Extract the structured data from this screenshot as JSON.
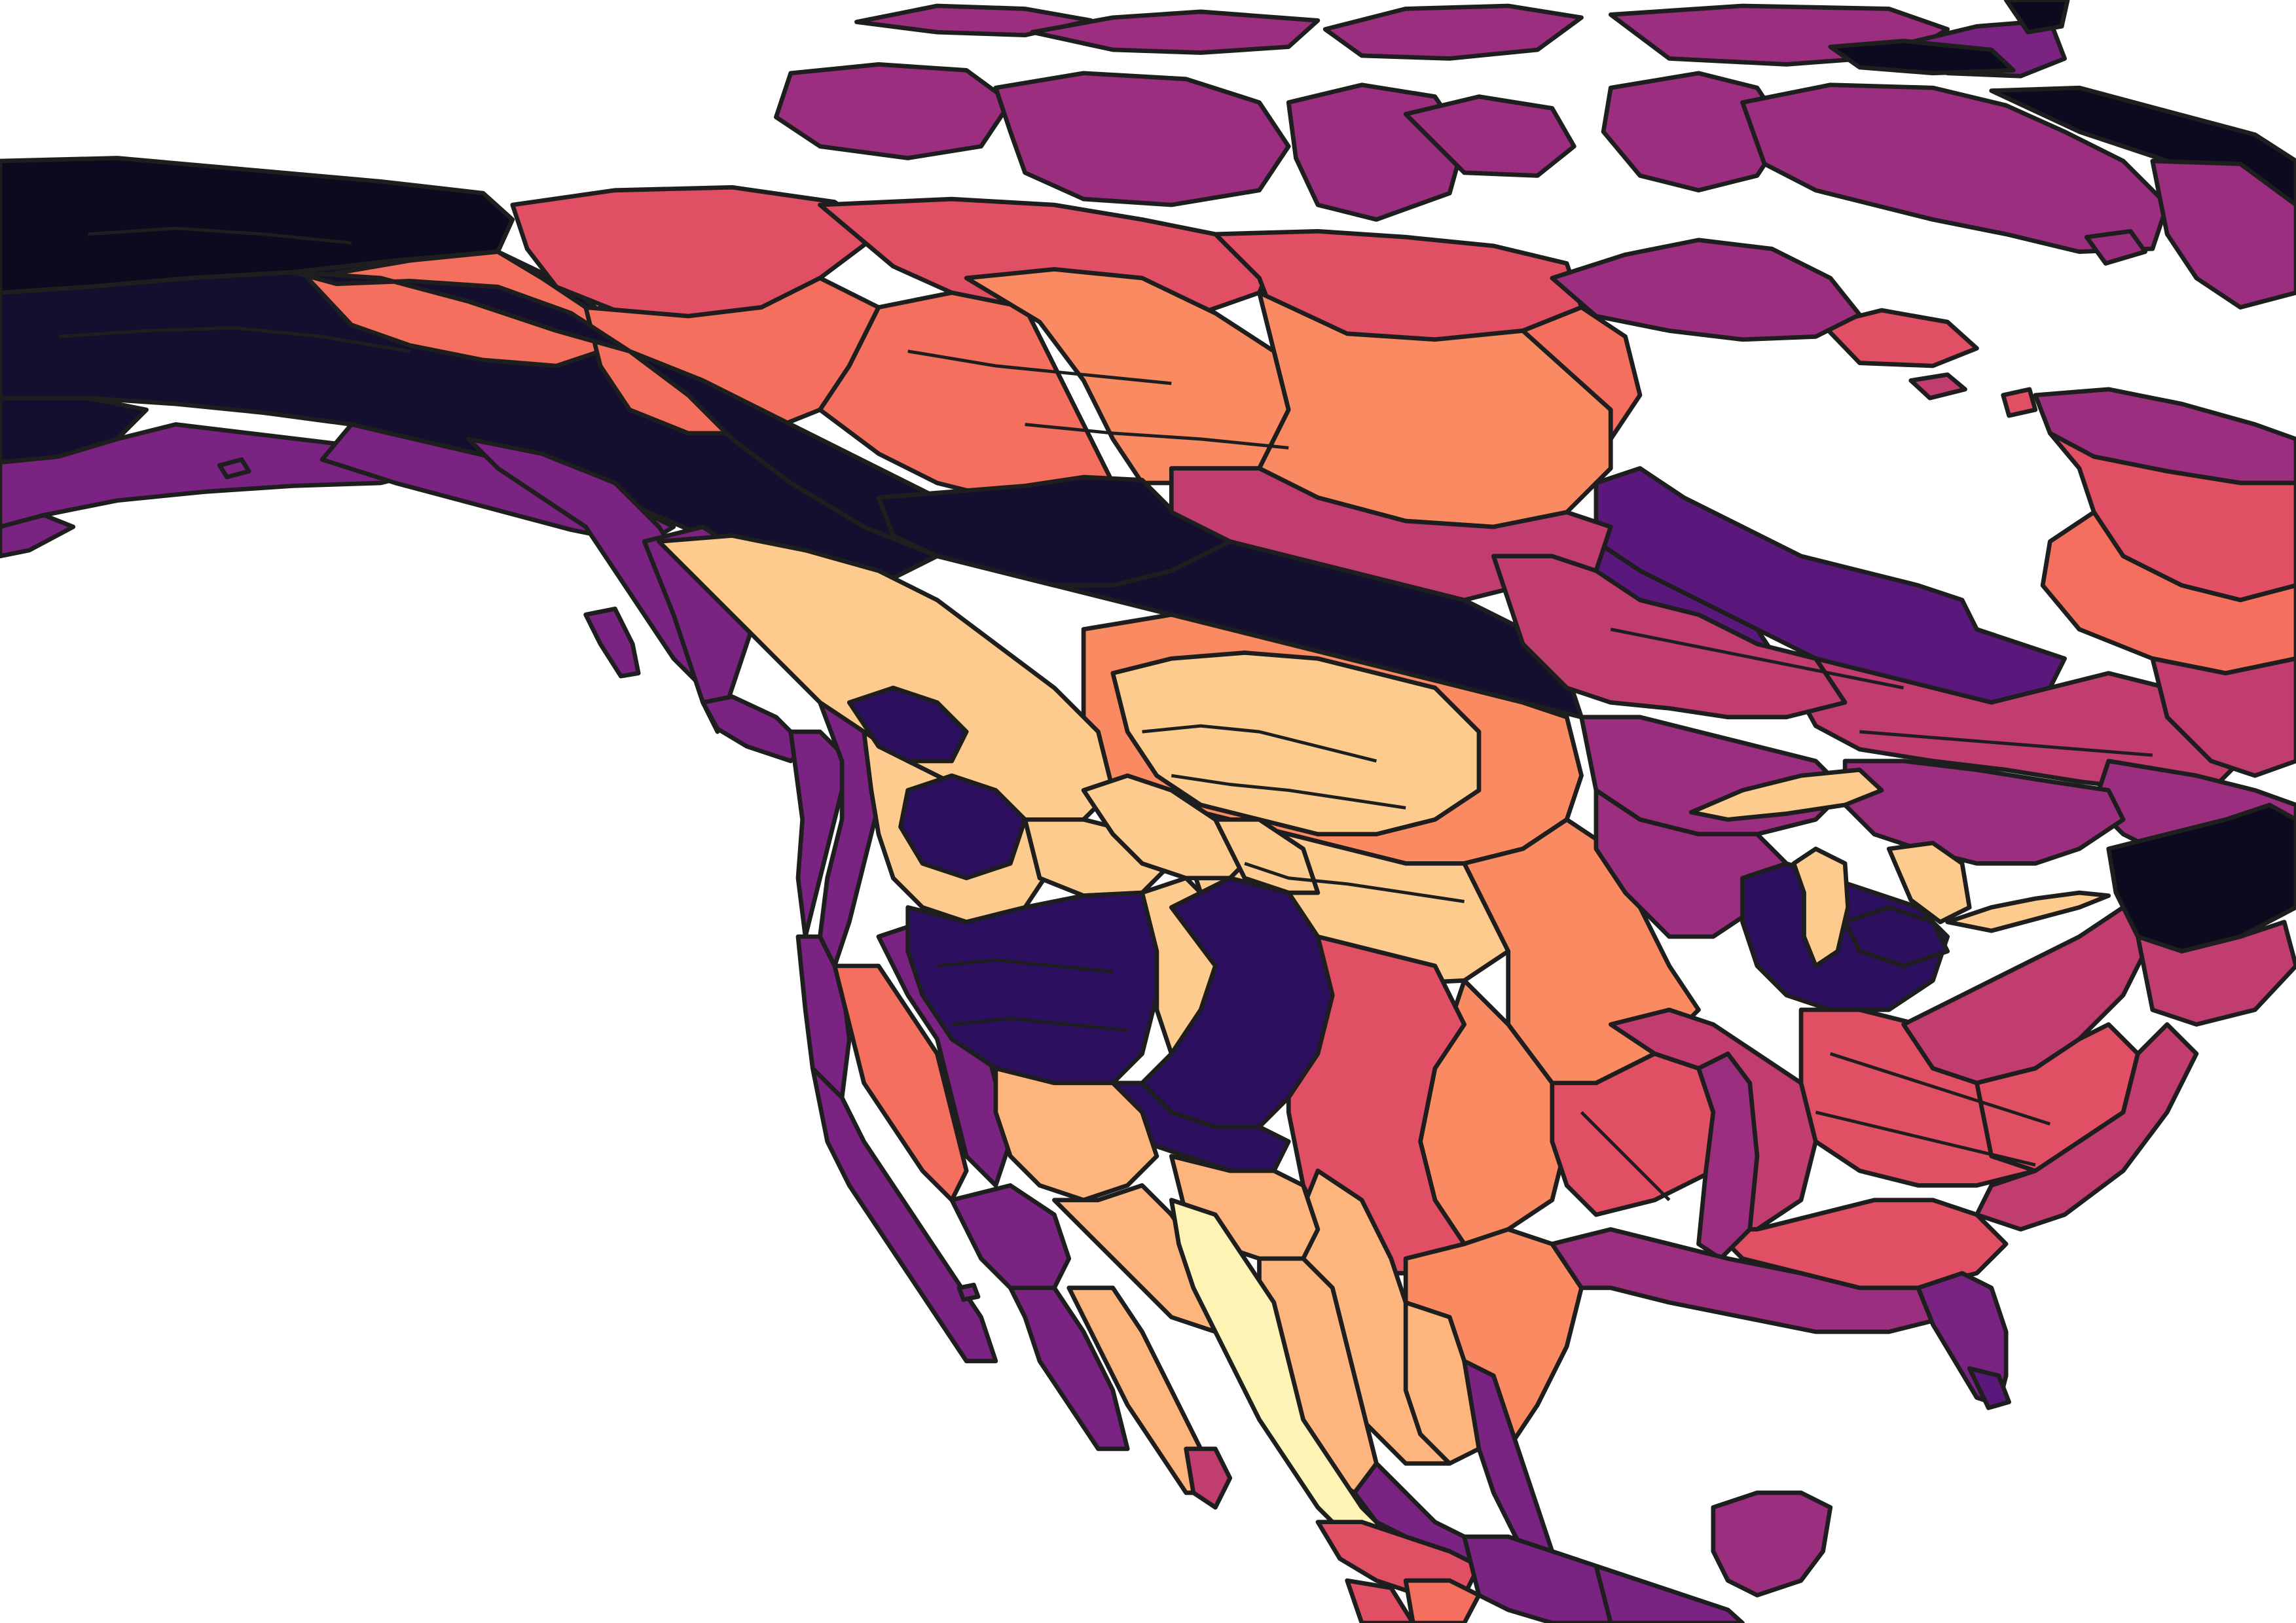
{
  "map": {
    "colormap": "magma",
    "background": "#ffffff",
    "region_border_color": "#1e1e1e",
    "palette": {
      "c1": "#0b0a1f",
      "c2": "#140f2e",
      "c3": "#2c0f5e",
      "c4": "#5a177c",
      "c5": "#7b2383",
      "c6": "#9c2e7f",
      "c7": "#c23d6f",
      "c8": "#e04f64",
      "c9": "#f46f5d",
      "c10": "#f98a62",
      "c11": "#fdb47d",
      "c12": "#fdcb8e",
      "c13": "#fcf3b5"
    }
  }
}
